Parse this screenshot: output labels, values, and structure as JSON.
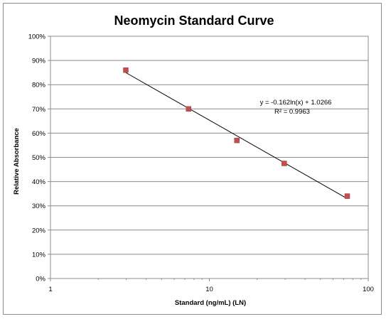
{
  "chart_data": {
    "type": "scatter",
    "title": "Neomycin Standard Curve",
    "xlabel": "Standard (ng/mL) (LN)",
    "ylabel": "Relative Absorbance",
    "x_scale": "log",
    "xlim": [
      1,
      100
    ],
    "ylim": [
      0,
      1
    ],
    "x_ticks": [
      1,
      10,
      100
    ],
    "x_tick_labels": [
      "1",
      "10",
      "100"
    ],
    "y_ticks": [
      0,
      0.1,
      0.2,
      0.3,
      0.4,
      0.5,
      0.6,
      0.7,
      0.8,
      0.9,
      1.0
    ],
    "y_tick_labels": [
      "0%",
      "10%",
      "20%",
      "30%",
      "40%",
      "50%",
      "60%",
      "70%",
      "80%",
      "90%",
      "100%"
    ],
    "grid": true,
    "legend": "none",
    "series": [
      {
        "marker": "square",
        "color": "#c0504d",
        "x": [
          2.98,
          7.4,
          14.9,
          29.6,
          73.8
        ],
        "y": [
          0.86,
          0.7,
          0.57,
          0.475,
          0.34
        ]
      }
    ],
    "trendline": {
      "type": "logarithmic",
      "slope": -0.162,
      "intercept": 1.0266,
      "x_range": [
        2.98,
        73.8
      ],
      "equation_text": "y = -0.162ln(x) + 1.0266",
      "r2_text": "R² = 0.9963",
      "color": "#000000"
    }
  }
}
